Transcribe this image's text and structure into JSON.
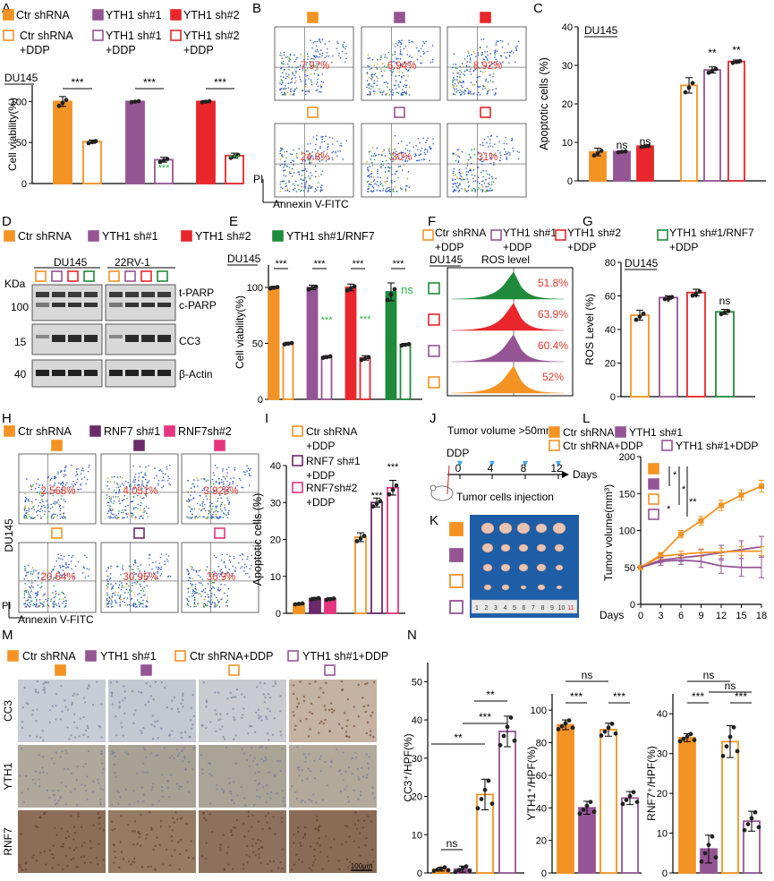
{
  "colors": {
    "orange": "#f39324",
    "purple": "#955595",
    "red": "#e8262b",
    "green": "#1f8a3c",
    "pink": "#e6357e",
    "darkpurple": "#6b2a6b",
    "sig_green": "#2db34a",
    "pct_red": "#e33a2c",
    "axis": "#000000"
  },
  "panels": {
    "A": "A",
    "B": "B",
    "C": "C",
    "D": "D",
    "E": "E",
    "F": "F",
    "G": "G",
    "H": "H",
    "I": "I",
    "J": "J",
    "K": "K",
    "L": "L",
    "M": "M",
    "N": "N"
  },
  "legendA": {
    "items": [
      "Ctr shRNA",
      "YTH1 sh#1",
      "YTH1 sh#2",
      "Ctr shRNA",
      "YTH1 sh#1",
      "YTH1 sh#2"
    ],
    "ddp": "+DDP"
  },
  "panelA": {
    "cell": "DU145",
    "ylabel": "Cell viability(%)",
    "ticks": [
      "0",
      "50",
      "100"
    ],
    "sig": [
      "***",
      "***",
      "***"
    ],
    "sig_green": [
      "***",
      "***"
    ]
  },
  "panelB": {
    "percents_top": [
      "7.97%",
      "6.94%",
      "8.92%"
    ],
    "percents_bottom": [
      "24.8%",
      "30%",
      "31%"
    ],
    "xlabel": "Annexin V-FITC",
    "ylabel": "PI"
  },
  "panelC": {
    "cell": "DU145",
    "ylabel": "Apoptotic cells (%)",
    "ticks": [
      "0",
      "10",
      "20",
      "30",
      "40"
    ],
    "sig": [
      "ns",
      "ns",
      "**",
      "**"
    ]
  },
  "legendD": {
    "items": [
      "Ctr shRNA",
      "YTH1 sh#1",
      "YTH1 sh#2",
      "YTH1 sh#1/RNF7"
    ],
    "ddp_items": [
      "Ctr shRNA",
      "YTH1 sh#1",
      "YTH1 sh#2",
      "YTH1 sh#1/RNF7"
    ],
    "ddp": "+DDP"
  },
  "panelD": {
    "cells": [
      "DU145",
      "22RV-1"
    ],
    "kda": "KDa",
    "mw": [
      "100",
      "15",
      "40"
    ],
    "bands": [
      "t-PARP",
      "c-PARP",
      "CC3",
      "β-Actin"
    ]
  },
  "panelE": {
    "cell": "DU145",
    "ylabel": "Cell viability(%)",
    "ticks": [
      "0",
      "50",
      "100"
    ],
    "sig": [
      "***",
      "***",
      "***",
      "***"
    ],
    "sig_green": [
      "***",
      "***",
      "ns"
    ]
  },
  "panelF": {
    "cell": "DU145",
    "title": "ROS level",
    "percents": [
      "51.8%",
      "63.9%",
      "60.4%",
      "52%"
    ]
  },
  "panelG": {
    "cell": "DU145",
    "ylabel": "ROS Level (%)",
    "ticks": [
      "0",
      "20",
      "40",
      "60",
      "80"
    ],
    "sig": [
      "*",
      "*",
      "ns"
    ]
  },
  "legendH": {
    "items": [
      "Ctr shRNA",
      "RNF7 sh#1",
      "RNF7sh#2"
    ]
  },
  "panelH": {
    "percents_top": [
      "2.568%",
      "4.051%",
      "3.928%"
    ],
    "percents_bottom": [
      "20.64%",
      "30.95%",
      "36.9%"
    ],
    "row_label": "DU145",
    "xlabel": "Annexin V-FITC",
    "ylabel": "PI"
  },
  "panelI": {
    "legend": [
      "Ctr shRNA",
      "RNF7 sh#1",
      "RNF7sh#2"
    ],
    "ddp": "+DDP",
    "ylabel": "Apoptotic cells (%)",
    "ticks": [
      "0",
      "10",
      "20",
      "30",
      "40"
    ],
    "sig": [
      "***",
      "***"
    ]
  },
  "panelJ": {
    "title": "Tumor volume >50mm³",
    "ddp": "DDP",
    "days": [
      "0",
      "4",
      "8",
      "12"
    ],
    "days_label": "Days",
    "injection": "Tumor cells injection"
  },
  "legendL": {
    "items": [
      "Ctr shRNA",
      "YTH1 sh#1",
      "Ctr shRNA+DDP",
      "YTH1 sh#1+DDP"
    ]
  },
  "panelK": {
    "ruler": [
      "1",
      "2",
      "3",
      "4",
      "5",
      "6",
      "7",
      "8",
      "9",
      "10",
      "11"
    ]
  },
  "panelM": {
    "legend": [
      "Ctr shRNA",
      "YTH1 sh#1",
      "Ctr shRNA+DDP",
      "YTH1 sh#1+DDP"
    ],
    "rows": [
      "CC3",
      "YTH1",
      "RNF7"
    ],
    "scale": "100μm"
  },
  "chart_data": [
    {
      "type": "bar",
      "panel": "A",
      "title": "",
      "ylabel": "Cell viability(%)",
      "categories": [
        "Ctr shRNA",
        "Ctr shRNA+DDP",
        "YTH1 sh#1",
        "YTH1 sh#1+DDP",
        "YTH1 sh#2",
        "YTH1 sh#2+DDP"
      ],
      "values": [
        100,
        51,
        100,
        29,
        100,
        34
      ],
      "errors": [
        6,
        2,
        1,
        3,
        1,
        3
      ],
      "ylim": [
        0,
        120
      ]
    },
    {
      "type": "bar",
      "panel": "C",
      "ylabel": "Apoptotic cells (%)",
      "categories": [
        "Ctr shRNA",
        "YTH1 sh#1",
        "YTH1 sh#2",
        "Ctr shRNA+DDP",
        "YTH1 sh#1+DDP",
        "YTH1 sh#2+DDP"
      ],
      "values": [
        7.5,
        7.6,
        9.0,
        24.8,
        28.8,
        31.0
      ],
      "errors": [
        1.0,
        0.2,
        0.2,
        2.0,
        0.8,
        0.4
      ],
      "ylim": [
        0,
        40
      ]
    },
    {
      "type": "bar",
      "panel": "E",
      "ylabel": "Cell viability(%)",
      "categories": [
        "Ctr shRNA",
        "Ctr shRNA+DDP",
        "YTH1 sh#1",
        "YTH1 sh#1+DDP",
        "YTH1 sh#2",
        "YTH1 sh#2+DDP",
        "YTH1 sh#1/RNF7",
        "YTH1 sh#1/RNF7+DDP"
      ],
      "values": [
        100,
        50,
        100,
        38,
        100,
        37,
        96,
        49
      ],
      "errors": [
        1,
        1,
        2,
        1,
        3,
        2,
        8,
        1
      ],
      "ylim": [
        0,
        120
      ]
    },
    {
      "type": "bar",
      "panel": "G",
      "ylabel": "ROS Level (%)",
      "categories": [
        "Ctr shRNA+DDP",
        "YTH1 sh#1+DDP",
        "YTH1 sh#2+DDP",
        "YTH1 sh#1/RNF7+DDP"
      ],
      "values": [
        48.5,
        59,
        62,
        50.5
      ],
      "errors": [
        3,
        1,
        2,
        1.5
      ],
      "ylim": [
        0,
        80
      ]
    },
    {
      "type": "bar",
      "panel": "I",
      "ylabel": "Apoptotic cells (%)",
      "categories": [
        "Ctr shRNA",
        "RNF7 sh#1",
        "RNF7sh#2",
        "Ctr shRNA+DDP",
        "RNF7 sh#1+DDP",
        "RNF7sh#2+DDP"
      ],
      "values": [
        2.6,
        4.0,
        3.9,
        20.6,
        30.0,
        34.0
      ],
      "errors": [
        0.2,
        0.3,
        0.3,
        1.2,
        1.2,
        2.0
      ],
      "ylim": [
        0,
        40
      ]
    },
    {
      "type": "line",
      "panel": "L",
      "ylabel": "Tumor volume(mm³)",
      "xlabel": "Days",
      "x": [
        0,
        3,
        6,
        9,
        12,
        15,
        18
      ],
      "series": [
        {
          "name": "Ctr shRNA",
          "values": [
            50,
            67,
            95,
            113,
            134,
            148,
            160
          ]
        },
        {
          "name": "YTH1 sh#1",
          "values": [
            50,
            60,
            63,
            66,
            70,
            74,
            78
          ]
        },
        {
          "name": "Ctr shRNA+DDP",
          "values": [
            50,
            65,
            68,
            70,
            71,
            72,
            72
          ]
        },
        {
          "name": "YTH1 sh#1+DDP",
          "values": [
            50,
            58,
            60,
            58,
            52,
            50,
            50
          ]
        }
      ],
      "xticks": [
        "0",
        "3",
        "6",
        "9",
        "12",
        "15",
        "18"
      ],
      "yticks": [
        "0",
        "50",
        "100",
        "150",
        "200"
      ],
      "sig": [
        "*",
        "*",
        "*",
        "**"
      ],
      "ylim": [
        0,
        200
      ]
    },
    {
      "type": "bar",
      "panel": "N1",
      "ylabel": "CC3⁺/HPF(%)",
      "categories": [
        "Ctr shRNA",
        "YTH1 sh#1",
        "Ctr shRNA+DDP",
        "YTH1 sh#1+DDP"
      ],
      "values": [
        1,
        1,
        20.5,
        37
      ],
      "errors": [
        0.5,
        0.8,
        4,
        4
      ],
      "yticks": [
        "0",
        "10",
        "20",
        "30",
        "40",
        "50"
      ],
      "sig": [
        "ns",
        "**",
        "***",
        "**"
      ],
      "ylim": [
        0,
        55
      ]
    },
    {
      "type": "bar",
      "panel": "N2",
      "ylabel": "YTH1⁺/HPF(%)",
      "categories": [
        "Ctr shRNA",
        "YTH1 sh#1",
        "Ctr shRNA+DDP",
        "YTH1 sh#1+DDP"
      ],
      "values": [
        91,
        40,
        88,
        46
      ],
      "errors": [
        3,
        4,
        4,
        4
      ],
      "yticks": [
        "0",
        "20",
        "40",
        "60",
        "80",
        "100"
      ],
      "sig": [
        "ns",
        "***",
        "***"
      ],
      "ylim": [
        0,
        110
      ]
    },
    {
      "type": "bar",
      "panel": "N3",
      "ylabel": "RNF7⁺/HPF(%)",
      "categories": [
        "Ctr shRNA",
        "YTH1 sh#1",
        "Ctr shRNA+DDP",
        "YTH1 sh#1+DDP"
      ],
      "values": [
        34,
        6,
        33,
        13
      ],
      "errors": [
        1,
        3.5,
        4,
        2.5
      ],
      "yticks": [
        "0",
        "10",
        "20",
        "30",
        "40"
      ],
      "sig": [
        "ns",
        "***",
        "ns",
        "***"
      ],
      "ylim": [
        0,
        45
      ]
    }
  ]
}
